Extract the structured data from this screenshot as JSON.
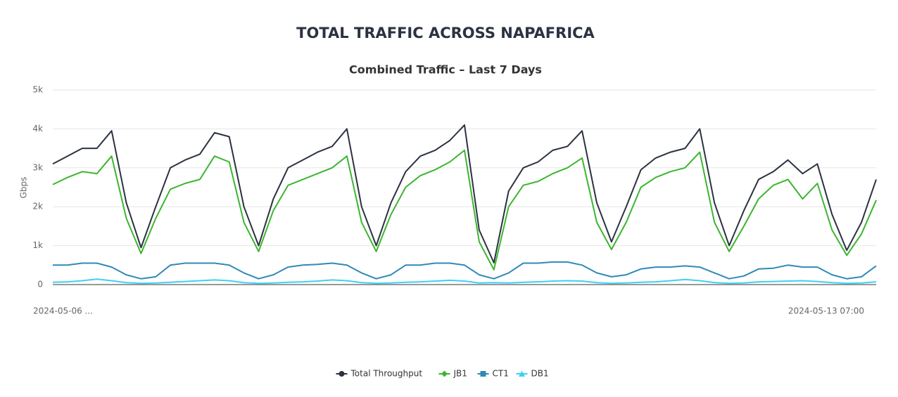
{
  "chart_data": {
    "type": "line",
    "title": "TOTAL TRAFFIC ACROSS NAPAFRICA",
    "subtitle": "Combined Traffic – Last 7 Days",
    "y_label": "Gbps",
    "categories": [
      "2024-05-06 ...",
      null,
      null,
      null,
      null,
      null,
      null,
      null,
      null,
      null,
      null,
      null,
      null,
      null,
      null,
      null,
      null,
      null,
      null,
      null,
      null,
      null,
      null,
      null,
      null,
      null,
      null,
      null,
      null,
      null,
      null,
      null,
      null,
      null,
      null,
      null,
      null,
      null,
      null,
      null,
      null,
      null,
      null,
      null,
      null,
      null,
      null,
      null,
      null,
      null,
      null,
      null,
      null,
      null,
      null,
      null,
      "2024-05-13 07:00"
    ],
    "ylim": [
      0,
      5000
    ],
    "yticks": [
      0,
      {
        "value": 1000,
        "label": "1k"
      },
      {
        "value": 2000,
        "label": "2k"
      },
      {
        "value": 3000,
        "label": "3k"
      },
      {
        "value": 4000,
        "label": "4k"
      },
      {
        "value": 5000,
        "label": "5k"
      }
    ],
    "grid": true,
    "legend": "bottom",
    "series": [
      {
        "name": "Total Throughput",
        "color": "#2b3240",
        "marker": "circle",
        "values": [
          3100,
          3300,
          3500,
          3500,
          3950,
          2100,
          950,
          2000,
          3000,
          3200,
          3350,
          3900,
          3800,
          2000,
          1000,
          2200,
          3000,
          3200,
          3400,
          3550,
          4000,
          2000,
          1000,
          2100,
          2900,
          3300,
          3450,
          3700,
          4100,
          1400,
          560,
          2400,
          3000,
          3150,
          3450,
          3550,
          3950,
          2100,
          1100,
          2000,
          2950,
          3250,
          3400,
          3500,
          4000,
          2100,
          1000,
          1900,
          2700,
          2900,
          3200,
          2850,
          3100,
          1800,
          880,
          1600,
          2700
        ]
      },
      {
        "name": "JB1",
        "color": "#3cb52e",
        "marker": "diamond",
        "values": [
          2570,
          2750,
          2900,
          2850,
          3300,
          1700,
          800,
          1700,
          2450,
          2600,
          2700,
          3300,
          3150,
          1600,
          850,
          1900,
          2550,
          2700,
          2850,
          3000,
          3300,
          1600,
          850,
          1800,
          2500,
          2800,
          2950,
          3150,
          3450,
          1100,
          380,
          2000,
          2550,
          2650,
          2850,
          3000,
          3250,
          1600,
          900,
          1600,
          2500,
          2750,
          2900,
          3000,
          3400,
          1600,
          850,
          1500,
          2200,
          2550,
          2700,
          2200,
          2600,
          1400,
          750,
          1300,
          2170
        ]
      },
      {
        "name": "CT1",
        "color": "#2f8ab8",
        "marker": "square",
        "values": [
          500,
          500,
          550,
          550,
          450,
          250,
          150,
          200,
          500,
          550,
          550,
          550,
          500,
          300,
          150,
          250,
          450,
          500,
          520,
          550,
          500,
          300,
          150,
          250,
          500,
          500,
          550,
          550,
          500,
          250,
          150,
          300,
          550,
          550,
          580,
          580,
          500,
          300,
          200,
          250,
          400,
          450,
          450,
          480,
          450,
          300,
          150,
          220,
          400,
          420,
          500,
          450,
          450,
          250,
          150,
          200,
          480
        ]
      },
      {
        "name": "DB1",
        "color": "#3fd0f0",
        "marker": "triangle",
        "values": [
          60,
          70,
          100,
          140,
          100,
          50,
          30,
          40,
          60,
          80,
          100,
          120,
          100,
          50,
          30,
          40,
          60,
          70,
          90,
          120,
          100,
          50,
          30,
          40,
          60,
          70,
          90,
          110,
          90,
          40,
          50,
          40,
          60,
          70,
          90,
          100,
          90,
          50,
          30,
          40,
          60,
          70,
          100,
          130,
          100,
          50,
          30,
          40,
          70,
          80,
          90,
          100,
          80,
          50,
          30,
          40,
          70
        ]
      }
    ]
  }
}
